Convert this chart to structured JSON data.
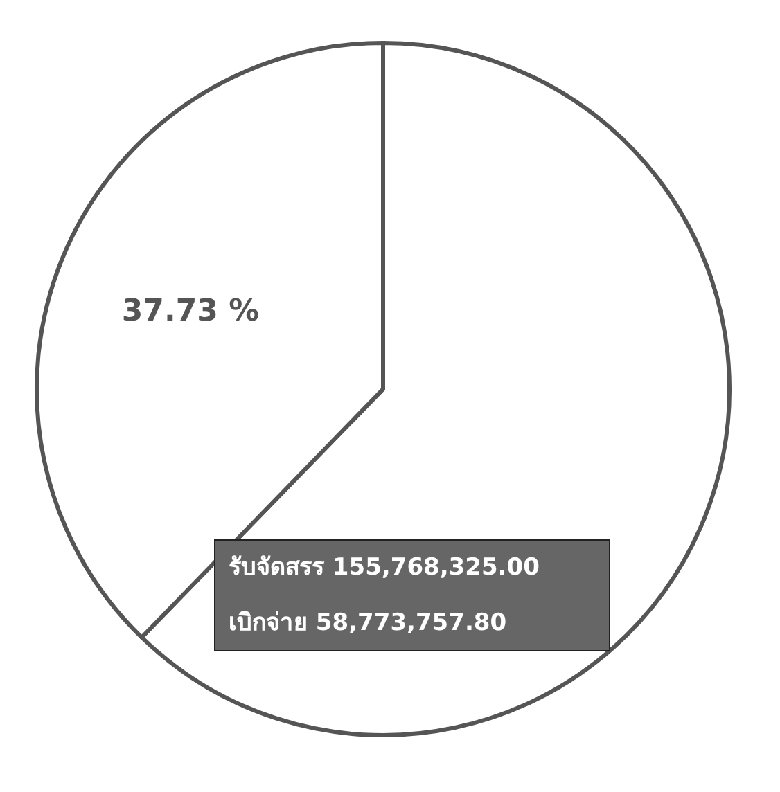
{
  "chart_data": {
    "type": "pie",
    "categories": [
      null,
      null
    ],
    "values": [
      62.27,
      37.73
    ],
    "colors": [
      "#ffffff",
      "#ffffff"
    ],
    "value_labels": [
      null,
      "37.73 %"
    ],
    "annotations": [
      "รับจัดสรร 155,768,325.00",
      "เบิกจ่าย 58,773,757.80"
    ],
    "data_labels": false
  }
}
